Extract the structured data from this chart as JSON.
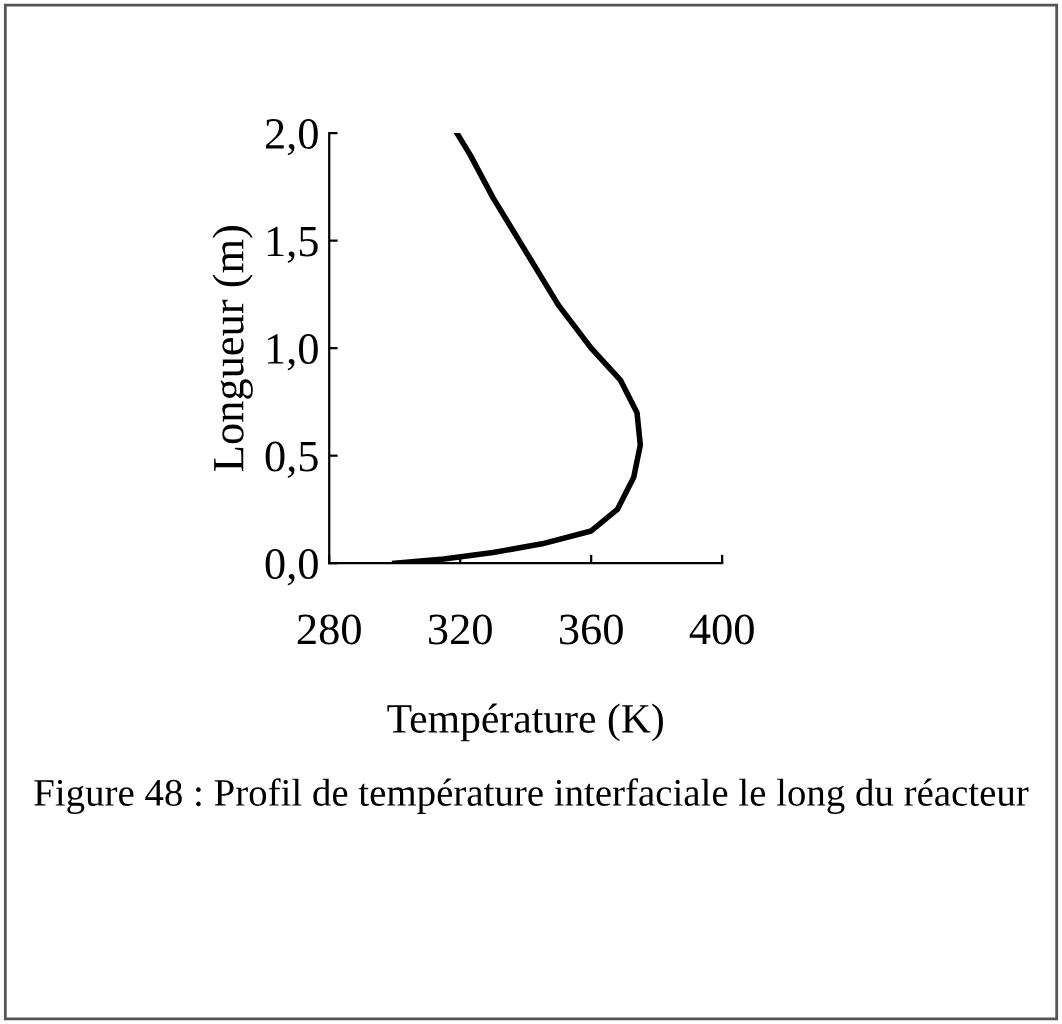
{
  "chart_data": {
    "type": "line",
    "xlabel": "Température (K)",
    "ylabel": "Longueur (m)",
    "x": [
      300,
      315,
      330,
      345,
      360,
      368,
      373,
      375,
      374,
      369,
      360,
      350,
      340,
      330,
      323,
      319
    ],
    "series": [
      {
        "color": "#000000",
        "values": [
          0,
          0.02,
          0.05,
          0.09,
          0.15,
          0.25,
          0.4,
          0.55,
          0.7,
          0.85,
          1.0,
          1.2,
          1.45,
          1.7,
          1.9,
          2.0
        ]
      }
    ],
    "xlim": [
      280,
      400
    ],
    "xticks": [
      280,
      320,
      360,
      400
    ],
    "ylim": [
      0,
      2
    ],
    "yticks": [
      {
        "value": 0,
        "label": "0,0"
      },
      {
        "value": 0.5,
        "label": "0,5"
      },
      {
        "value": 1,
        "label": "1,0"
      },
      {
        "value": 1.5,
        "label": "1,5"
      },
      {
        "value": 2,
        "label": "2,0"
      }
    ],
    "grid": false,
    "legend": false,
    "marker": "none",
    "line_style": "solid",
    "annotations": [
      "Figure 48 : Profil de température interfaciale le long du réacteur"
    ]
  }
}
